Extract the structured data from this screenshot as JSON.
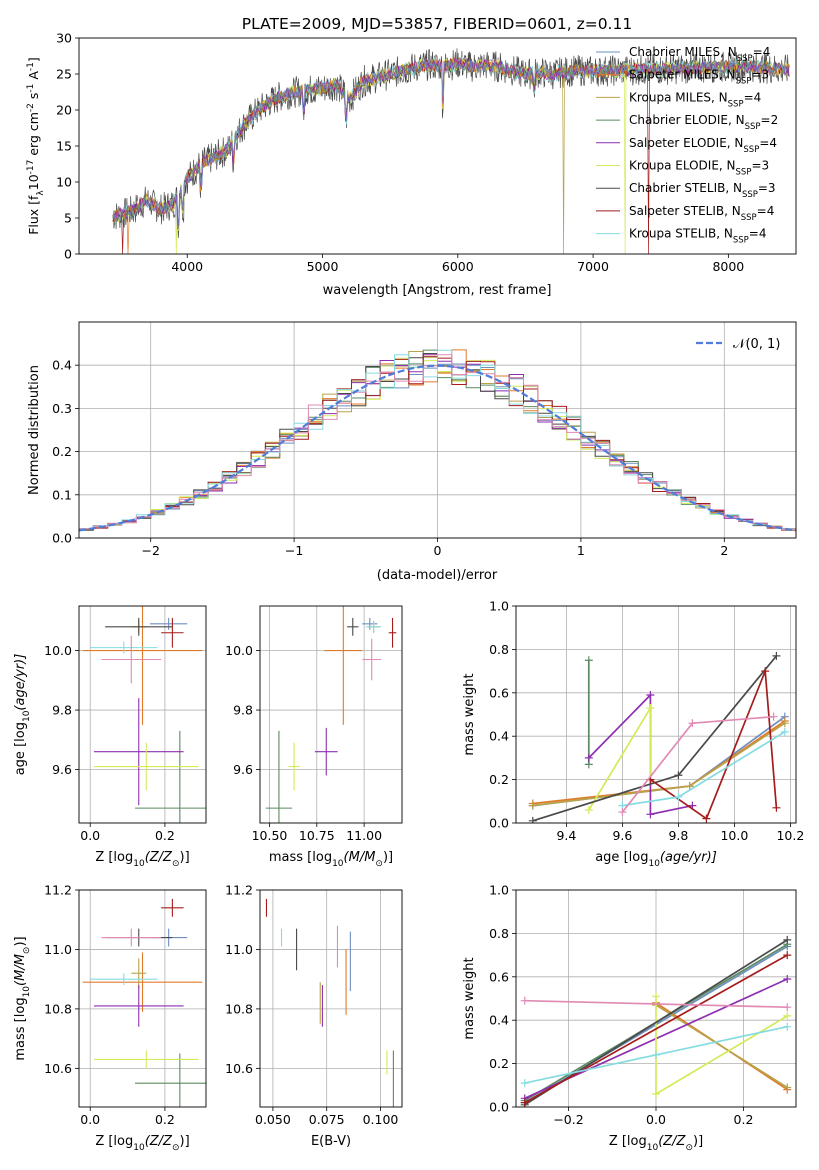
{
  "colors": {
    "CM": "#6f8fbf",
    "SM": "#e07b2a",
    "KM": "#b8a34a",
    "CE": "#5b8a63",
    "SE": "#8e2fb0",
    "KE": "#d5ea5a",
    "CS": "#4a4a4a",
    "SS": "#a51c1c",
    "KS": "#86dbe0",
    "pinkExtra": "#e08ab4",
    "normal": "#4f7dd9"
  },
  "chart_data": [
    {
      "id": "spectrum",
      "type": "line",
      "title": "PLATE=2009, MJD=53857, FIBERID=0601, z=0.11",
      "xlabel": "wavelength [Angstrom, rest frame]",
      "ylabel": "Flux [f",
      "ylabel_sub": "λ",
      "ylabel_rest": "10",
      "ylabel_exp": "-17",
      "ylabel_tail": " erg cm",
      "ylabel_tail_exp": "-2",
      "ylabel_tail2": " s",
      "ylabel_tail2_exp": "-1",
      "ylabel_end": " A",
      "ylabel_end_exp": "-1",
      "ylabel_close": "]",
      "xlim": [
        3200,
        8500
      ],
      "ylim": [
        0,
        30
      ],
      "xticks": [
        4000,
        5000,
        6000,
        7000,
        8000
      ],
      "yticks": [
        0,
        5,
        10,
        15,
        20,
        25,
        30
      ],
      "continuum": [
        [
          3450,
          5.2
        ],
        [
          3600,
          6.0
        ],
        [
          3700,
          7.5
        ],
        [
          3800,
          6.2
        ],
        [
          3900,
          7.0
        ],
        [
          4000,
          10.5
        ],
        [
          4100,
          12.5
        ],
        [
          4200,
          13.5
        ],
        [
          4300,
          14.5
        ],
        [
          4400,
          17.5
        ],
        [
          4500,
          19.5
        ],
        [
          4600,
          21.0
        ],
        [
          4700,
          22.0
        ],
        [
          4800,
          22.5
        ],
        [
          4900,
          22.8
        ],
        [
          5000,
          23.0
        ],
        [
          5100,
          23.5
        ],
        [
          5200,
          21.5
        ],
        [
          5300,
          24.0
        ],
        [
          5400,
          24.5
        ],
        [
          5500,
          25.0
        ],
        [
          5600,
          25.5
        ],
        [
          5700,
          26.0
        ],
        [
          5800,
          26.3
        ],
        [
          5900,
          26.0
        ],
        [
          6000,
          26.5
        ],
        [
          6100,
          26.0
        ],
        [
          6200,
          26.2
        ],
        [
          6300,
          26.0
        ],
        [
          6400,
          25.5
        ],
        [
          6500,
          25.0
        ],
        [
          6600,
          25.2
        ],
        [
          6700,
          25.0
        ],
        [
          6800,
          25.3
        ],
        [
          6900,
          25.5
        ],
        [
          7000,
          25.4
        ],
        [
          7200,
          25.5
        ],
        [
          7400,
          25.6
        ],
        [
          7600,
          25.7
        ],
        [
          7800,
          25.9
        ],
        [
          8000,
          26.0
        ],
        [
          8200,
          26.0
        ],
        [
          8450,
          25.5
        ]
      ],
      "legend": [
        {
          "key": "CM",
          "label": "Chabrier MILES, N",
          "sub": "SSP",
          "tail": "=4"
        },
        {
          "key": "SM",
          "label": "Salpeter MILES, N",
          "sub": "SSP",
          "tail": "=3"
        },
        {
          "key": "KM",
          "label": "Kroupa MILES, N",
          "sub": "SSP",
          "tail": "=4"
        },
        {
          "key": "CE",
          "label": "Chabrier ELODIE, N",
          "sub": "SSP",
          "tail": "=2"
        },
        {
          "key": "SE",
          "label": "Salpeter ELODIE, N",
          "sub": "SSP",
          "tail": "=4"
        },
        {
          "key": "KE",
          "label": "Kroupa ELODIE, N",
          "sub": "SSP",
          "tail": "=3"
        },
        {
          "key": "CS",
          "label": "Chabrier STELIB, N",
          "sub": "SSP",
          "tail": "=3"
        },
        {
          "key": "SS",
          "label": "Salpeter STELIB, N",
          "sub": "SSP",
          "tail": "=4"
        },
        {
          "key": "KS",
          "label": "Kroupa STELIB, N",
          "sub": "SSP",
          "tail": "=4"
        }
      ]
    },
    {
      "id": "residuals",
      "type": "histogram",
      "xlabel": "(data-model)/error",
      "ylabel": "Normed distribution",
      "xlim": [
        -2.5,
        2.5
      ],
      "ylim": [
        0,
        0.5
      ],
      "xticks": [
        -2,
        -1,
        0,
        1,
        2
      ],
      "yticks": [
        0.0,
        0.1,
        0.2,
        0.3,
        0.4
      ],
      "legend": "𝒩(0, 1)",
      "bin_width": 0.1
    },
    {
      "id": "age_vs_Z",
      "type": "scatter",
      "xlabel": "Z [log",
      "xlabel_sub": "10",
      "xlabel_tail": "(Z/Z",
      "xlabel_sub2": "⊙",
      "xlabel_end": ")]",
      "ylabel": "age  [log",
      "ylabel_sub": "10",
      "ylabel_tail": "(age/yr)]",
      "xlim": [
        -0.03,
        0.31
      ],
      "ylim": [
        9.42,
        10.15
      ],
      "xticks": [
        0.0,
        0.2
      ],
      "yticks": [
        9.6,
        9.8,
        10.0
      ],
      "points": [
        {
          "key": "CM",
          "x": 0.21,
          "y": 10.09,
          "xe": 0.05,
          "ye": 0.02
        },
        {
          "key": "SM",
          "x": 0.14,
          "y": 10.0,
          "xe": 0.16,
          "ye": 0.25
        },
        {
          "key": "KM",
          "x": 0.13,
          "y": 10.08,
          "xe": 0.02,
          "ye": 0.02
        },
        {
          "key": "CE",
          "x": 0.24,
          "y": 9.47,
          "xe": 0.12,
          "ye": 0.26
        },
        {
          "key": "SE",
          "x": 0.13,
          "y": 9.66,
          "xe": 0.12,
          "ye": 0.18
        },
        {
          "key": "KE",
          "x": 0.15,
          "y": 9.61,
          "xe": 0.14,
          "ye": 0.08
        },
        {
          "key": "CS",
          "x": 0.13,
          "y": 10.08,
          "xe": 0.09,
          "ye": 0.03
        },
        {
          "key": "SS",
          "x": 0.22,
          "y": 10.06,
          "xe": 0.03,
          "ye": 0.05
        },
        {
          "key": "KS",
          "x": 0.09,
          "y": 10.01,
          "xe": 0.09,
          "ye": 0.02
        },
        {
          "key": "pinkExtra",
          "x": 0.11,
          "y": 9.97,
          "xe": 0.08,
          "ye": 0.08
        }
      ]
    },
    {
      "id": "age_vs_mass",
      "type": "scatter",
      "xlabel": "mass [log",
      "xlabel_sub": "10",
      "xlabel_tail": "(M/M",
      "xlabel_sub2": "⊙",
      "xlabel_end": ")]",
      "xlim": [
        10.45,
        11.2
      ],
      "ylim": [
        9.42,
        10.15
      ],
      "xticks": [
        10.5,
        10.75,
        11.0
      ],
      "yticks": [
        9.6,
        9.8,
        10.0
      ],
      "points": [
        {
          "key": "CM",
          "x": 11.03,
          "y": 10.09,
          "xe": 0.04,
          "ye": 0.02
        },
        {
          "key": "SM",
          "x": 10.89,
          "y": 10.0,
          "xe": 0.1,
          "ye": 0.25
        },
        {
          "key": "KM",
          "x": 11.05,
          "y": 10.08,
          "xe": 0.03,
          "ye": 0.02
        },
        {
          "key": "CE",
          "x": 10.55,
          "y": 9.47,
          "xe": 0.07,
          "ye": 0.26
        },
        {
          "key": "SE",
          "x": 10.8,
          "y": 9.66,
          "xe": 0.06,
          "ye": 0.08
        },
        {
          "key": "KE",
          "x": 10.63,
          "y": 9.61,
          "xe": 0.03,
          "ye": 0.08
        },
        {
          "key": "CS",
          "x": 10.94,
          "y": 10.08,
          "xe": 0.03,
          "ye": 0.03
        },
        {
          "key": "SS",
          "x": 11.15,
          "y": 10.06,
          "xe": 0.02,
          "ye": 0.05
        },
        {
          "key": "KS",
          "x": 11.05,
          "y": 10.08,
          "xe": 0.04,
          "ye": 0.02
        },
        {
          "key": "pinkExtra",
          "x": 11.04,
          "y": 9.97,
          "xe": 0.05,
          "ye": 0.07
        }
      ]
    },
    {
      "id": "weight_vs_age",
      "type": "line",
      "xlabel": "age  [log",
      "xlabel_sub": "10",
      "xlabel_tail": "(age/yr)]",
      "ylabel": "mass weight",
      "xlim": [
        9.22,
        10.22
      ],
      "ylim": [
        0,
        1
      ],
      "xticks": [
        9.4,
        9.6,
        9.8,
        10.0,
        10.2
      ],
      "yticks": [
        0.0,
        0.2,
        0.4,
        0.6,
        0.8,
        1.0
      ],
      "series": [
        {
          "key": "CM",
          "x": [
            9.28,
            9.84,
            10.18
          ],
          "y": [
            0.08,
            0.17,
            0.49
          ]
        },
        {
          "key": "SM",
          "x": [
            9.28,
            9.84,
            10.18
          ],
          "y": [
            0.09,
            0.17,
            0.47
          ]
        },
        {
          "key": "KM",
          "x": [
            9.28,
            9.84,
            10.18
          ],
          "y": [
            0.08,
            0.17,
            0.46
          ]
        },
        {
          "key": "CE",
          "x": [
            9.48,
            9.48
          ],
          "y": [
            0.27,
            0.75
          ]
        },
        {
          "key": "SE",
          "x": [
            9.48,
            9.7,
            9.7,
            9.85
          ],
          "y": [
            0.3,
            0.59,
            0.04,
            0.08
          ]
        },
        {
          "key": "KE",
          "x": [
            9.48,
            9.7,
            9.7
          ],
          "y": [
            0.06,
            0.53,
            0.2
          ]
        },
        {
          "key": "CS",
          "x": [
            9.28,
            9.8,
            10.15
          ],
          "y": [
            0.01,
            0.22,
            0.77
          ]
        },
        {
          "key": "SS",
          "x": [
            9.7,
            9.9,
            10.11,
            10.15
          ],
          "y": [
            0.2,
            0.02,
            0.7,
            0.07
          ]
        },
        {
          "key": "KS",
          "x": [
            9.6,
            9.8,
            10.18
          ],
          "y": [
            0.08,
            0.12,
            0.42
          ]
        },
        {
          "key": "pinkExtra",
          "x": [
            9.6,
            9.85,
            10.14
          ],
          "y": [
            0.05,
            0.46,
            0.49
          ]
        }
      ]
    },
    {
      "id": "mass_vs_Z",
      "type": "scatter",
      "xlabel": "Z [log",
      "xlabel_sub": "10",
      "xlabel_tail": "(Z/Z",
      "xlabel_sub2": "⊙",
      "xlabel_end": ")]",
      "ylabel": "mass [log",
      "ylabel_sub": "10",
      "ylabel_tail": "(M/M",
      "ylabel_sub2": "⊙",
      "ylabel_end": ")]",
      "xlim": [
        -0.03,
        0.31
      ],
      "ylim": [
        10.47,
        11.2
      ],
      "xticks": [
        0.0,
        0.2
      ],
      "yticks": [
        10.6,
        10.8,
        11.0,
        11.2
      ],
      "points": [
        {
          "key": "CM",
          "x": 0.21,
          "y": 11.04,
          "xe": 0.05,
          "ye": 0.03
        },
        {
          "key": "SM",
          "x": 0.14,
          "y": 10.89,
          "xe": 0.16,
          "ye": 0.1
        },
        {
          "key": "KM",
          "x": 0.13,
          "y": 10.92,
          "xe": 0.02,
          "ye": 0.05
        },
        {
          "key": "CE",
          "x": 0.24,
          "y": 10.55,
          "xe": 0.12,
          "ye": 0.1
        },
        {
          "key": "SE",
          "x": 0.13,
          "y": 10.81,
          "xe": 0.12,
          "ye": 0.07
        },
        {
          "key": "KE",
          "x": 0.15,
          "y": 10.63,
          "xe": 0.14,
          "ye": 0.03
        },
        {
          "key": "CS",
          "x": 0.13,
          "y": 11.04,
          "xe": 0.09,
          "ye": 0.03
        },
        {
          "key": "SS",
          "x": 0.22,
          "y": 11.14,
          "xe": 0.03,
          "ye": 0.03
        },
        {
          "key": "KS",
          "x": 0.09,
          "y": 10.9,
          "xe": 0.09,
          "ye": 0.02
        },
        {
          "key": "pinkExtra",
          "x": 0.11,
          "y": 11.04,
          "xe": 0.08,
          "ye": 0.03
        }
      ]
    },
    {
      "id": "mass_vs_EBV",
      "type": "scatter",
      "xlabel": "E(B-V)",
      "xlim": [
        0.044,
        0.11
      ],
      "ylim": [
        10.47,
        11.2
      ],
      "xticks": [
        0.05,
        0.075,
        0.1
      ],
      "yticks": [
        10.6,
        10.8,
        11.0,
        11.2
      ],
      "points": [
        {
          "key": "CM",
          "x": 0.086,
          "y": 10.96,
          "xe": 0,
          "ye": 0.1
        },
        {
          "key": "SM",
          "x": 0.084,
          "y": 10.89,
          "xe": 0,
          "ye": 0.11
        },
        {
          "key": "KM",
          "x": 0.072,
          "y": 10.82,
          "xe": 0,
          "ye": 0.07
        },
        {
          "key": "CE",
          "x": 0.106,
          "y": 10.56,
          "xe": 0,
          "ye": 0.1
        },
        {
          "key": "SE",
          "x": 0.073,
          "y": 10.81,
          "xe": 0,
          "ye": 0.07
        },
        {
          "key": "KE",
          "x": 0.103,
          "y": 10.62,
          "xe": 0,
          "ye": 0.04
        },
        {
          "key": "CS",
          "x": 0.061,
          "y": 11.0,
          "xe": 0,
          "ye": 0.07
        },
        {
          "key": "SS",
          "x": 0.047,
          "y": 11.14,
          "xe": 0,
          "ye": 0.03
        },
        {
          "key": "KS",
          "x": 0.054,
          "y": 11.04,
          "xe": 0,
          "ye": 0.03
        },
        {
          "key": "pinkExtra",
          "x": 0.08,
          "y": 11.01,
          "xe": 0,
          "ye": 0.07
        }
      ]
    },
    {
      "id": "weight_vs_Z",
      "type": "line",
      "xlabel": "Z [log",
      "xlabel_sub": "10",
      "xlabel_tail": "(Z/Z",
      "xlabel_sub2": "⊙",
      "xlabel_end": ")]",
      "ylabel": "mass weight",
      "xlim": [
        -0.32,
        0.32
      ],
      "ylim": [
        0,
        1
      ],
      "xticks": [
        -0.2,
        0.0,
        0.2
      ],
      "yticks": [
        0.0,
        0.2,
        0.4,
        0.6,
        0.8,
        1.0
      ],
      "series": [
        {
          "key": "CM",
          "x": [
            -0.3,
            0.3
          ],
          "y": [
            0.02,
            0.74
          ]
        },
        {
          "key": "SM",
          "x": [
            0.0,
            0.3
          ],
          "y": [
            0.48,
            0.08
          ]
        },
        {
          "key": "KM",
          "x": [
            0.0,
            0.3
          ],
          "y": [
            0.47,
            0.09
          ]
        },
        {
          "key": "CE",
          "x": [
            -0.3,
            0.3
          ],
          "y": [
            0.03,
            0.75
          ]
        },
        {
          "key": "SE",
          "x": [
            -0.3,
            0.3
          ],
          "y": [
            0.04,
            0.59
          ]
        },
        {
          "key": "KE",
          "x": [
            0.0,
            0.0,
            0.3
          ],
          "y": [
            0.51,
            0.06,
            0.42
          ]
        },
        {
          "key": "CS",
          "x": [
            -0.3,
            0.3
          ],
          "y": [
            0.01,
            0.77
          ]
        },
        {
          "key": "SS",
          "x": [
            -0.3,
            0.3
          ],
          "y": [
            0.02,
            0.7
          ]
        },
        {
          "key": "KS",
          "x": [
            -0.3,
            0.0,
            0.3
          ],
          "y": [
            0.11,
            0.24,
            0.37
          ]
        },
        {
          "key": "pinkExtra",
          "x": [
            -0.3,
            0.3
          ],
          "y": [
            0.49,
            0.46
          ]
        }
      ]
    }
  ]
}
